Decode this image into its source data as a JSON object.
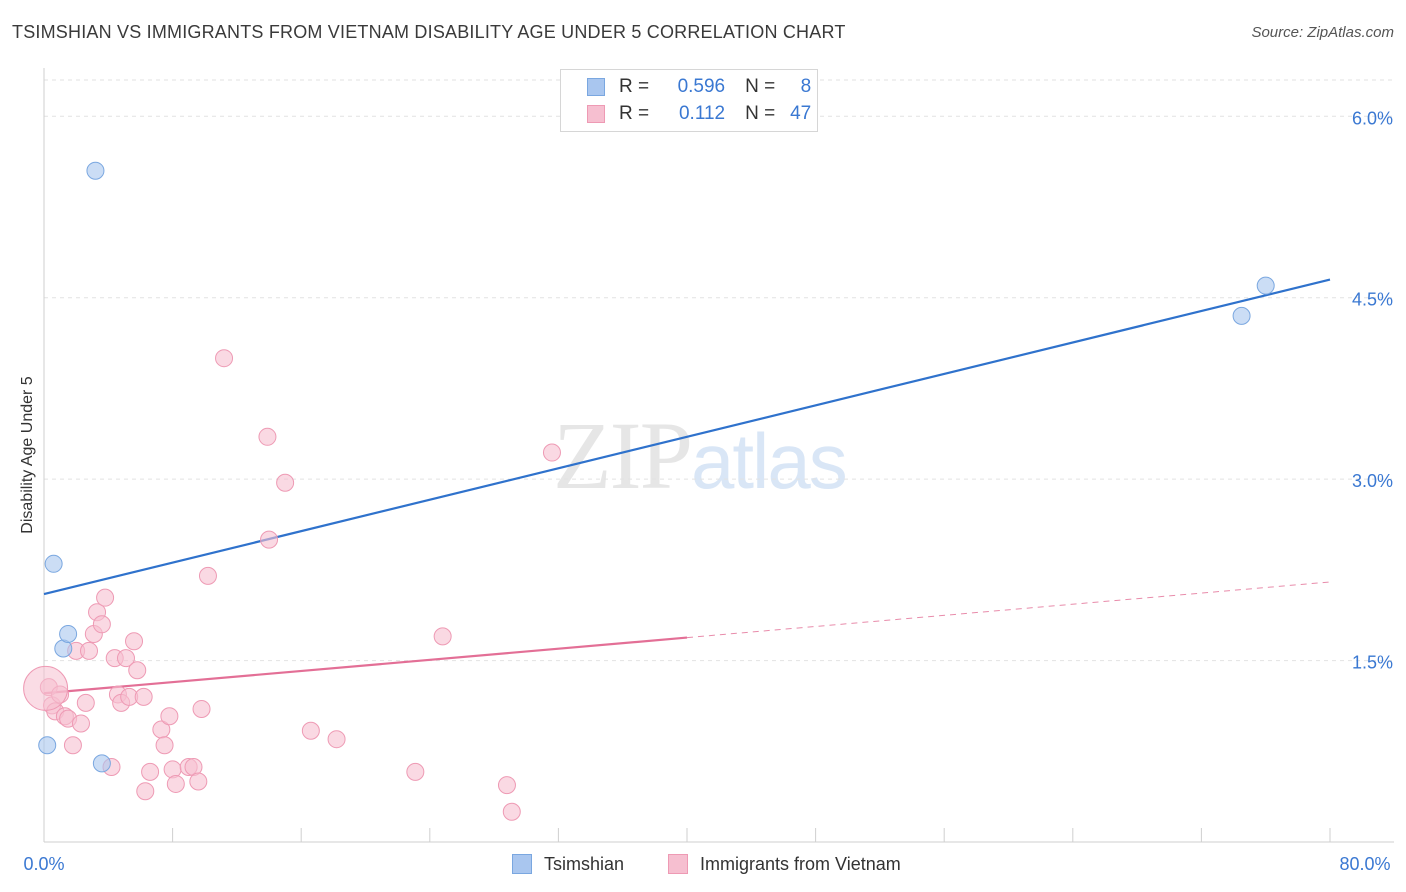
{
  "header": {
    "title": "TSIMSHIAN VS IMMIGRANTS FROM VIETNAM DISABILITY AGE UNDER 5 CORRELATION CHART",
    "source": "Source: ZipAtlas.com"
  },
  "watermark": {
    "zip": "ZIP",
    "atlas": "atlas"
  },
  "stats_legend": {
    "rows": [
      {
        "r_label": "R =",
        "r_value": "0.596",
        "n_label": "N =",
        "n_value": "8",
        "color": "#a9c6ef",
        "border": "#7aa7e0"
      },
      {
        "r_label": "R =",
        "r_value": "0.112",
        "n_label": "N =",
        "n_value": "47",
        "color": "#f6bfd0",
        "border": "#ee9ab4"
      }
    ]
  },
  "bottom_legend": {
    "items": [
      {
        "label": "Tsimshian",
        "color": "#a9c6ef",
        "border": "#7aa7e0"
      },
      {
        "label": "Immigrants from Vietnam",
        "color": "#f6bfd0",
        "border": "#ee9ab4"
      }
    ]
  },
  "chart_data": {
    "type": "scatter",
    "title": "TSIMSHIAN VS IMMIGRANTS FROM VIETNAM DISABILITY AGE UNDER 5 CORRELATION CHART",
    "xlabel": "",
    "ylabel": "Disability Age Under 5",
    "xlim": [
      0,
      80
    ],
    "ylim": [
      0,
      6.3
    ],
    "x_tick_labels": [
      "0.0%",
      "80.0%"
    ],
    "y_ticks": [
      1.5,
      3.0,
      4.5,
      6.0
    ],
    "y_tick_labels": [
      "1.5%",
      "3.0%",
      "4.5%",
      "6.0%"
    ],
    "grid": true,
    "series": [
      {
        "name": "Tsimshian",
        "color": "#a9c6ef",
        "stroke": "#7aa7e0",
        "line_color": "#2f72cc",
        "points": [
          {
            "x": 0.2,
            "y": 0.8
          },
          {
            "x": 0.6,
            "y": 2.3
          },
          {
            "x": 1.2,
            "y": 1.6
          },
          {
            "x": 1.5,
            "y": 1.72
          },
          {
            "x": 3.6,
            "y": 0.65
          },
          {
            "x": 3.2,
            "y": 5.55
          },
          {
            "x": 74.5,
            "y": 4.35
          },
          {
            "x": 76.0,
            "y": 4.6
          }
        ],
        "trend": {
          "x0": 0,
          "y0": 2.05,
          "x1": 80,
          "y1": 4.65,
          "dashed_from": null
        }
      },
      {
        "name": "Immigrants from Vietnam",
        "color": "#f6bfd0",
        "stroke": "#ee9ab4",
        "line_color": "#e36f96",
        "points": [
          {
            "x": 0.3,
            "y": 1.28
          },
          {
            "x": 0.5,
            "y": 1.13
          },
          {
            "x": 0.7,
            "y": 1.08
          },
          {
            "x": 1.0,
            "y": 1.22
          },
          {
            "x": 1.3,
            "y": 1.04
          },
          {
            "x": 1.5,
            "y": 1.02
          },
          {
            "x": 1.8,
            "y": 0.8
          },
          {
            "x": 2.0,
            "y": 1.58
          },
          {
            "x": 2.3,
            "y": 0.98
          },
          {
            "x": 2.6,
            "y": 1.15
          },
          {
            "x": 2.8,
            "y": 1.58
          },
          {
            "x": 3.1,
            "y": 1.72
          },
          {
            "x": 3.3,
            "y": 1.9
          },
          {
            "x": 3.6,
            "y": 1.8
          },
          {
            "x": 3.8,
            "y": 2.02
          },
          {
            "x": 4.2,
            "y": 0.62
          },
          {
            "x": 4.4,
            "y": 1.52
          },
          {
            "x": 4.6,
            "y": 1.22
          },
          {
            "x": 4.8,
            "y": 1.15
          },
          {
            "x": 5.1,
            "y": 1.52
          },
          {
            "x": 5.3,
            "y": 1.2
          },
          {
            "x": 5.6,
            "y": 1.66
          },
          {
            "x": 5.8,
            "y": 1.42
          },
          {
            "x": 6.2,
            "y": 1.2
          },
          {
            "x": 6.3,
            "y": 0.42
          },
          {
            "x": 6.6,
            "y": 0.58
          },
          {
            "x": 7.3,
            "y": 0.93
          },
          {
            "x": 7.5,
            "y": 0.8
          },
          {
            "x": 7.8,
            "y": 1.04
          },
          {
            "x": 8.0,
            "y": 0.6
          },
          {
            "x": 8.2,
            "y": 0.48
          },
          {
            "x": 9.0,
            "y": 0.62
          },
          {
            "x": 9.3,
            "y": 0.62
          },
          {
            "x": 9.6,
            "y": 0.5
          },
          {
            "x": 9.8,
            "y": 1.1
          },
          {
            "x": 10.2,
            "y": 2.2
          },
          {
            "x": 11.2,
            "y": 4.0
          },
          {
            "x": 13.9,
            "y": 3.35
          },
          {
            "x": 14.0,
            "y": 2.5
          },
          {
            "x": 15.0,
            "y": 2.97
          },
          {
            "x": 16.6,
            "y": 0.92
          },
          {
            "x": 18.2,
            "y": 0.85
          },
          {
            "x": 23.1,
            "y": 0.58
          },
          {
            "x": 24.8,
            "y": 1.7
          },
          {
            "x": 28.8,
            "y": 0.47
          },
          {
            "x": 29.1,
            "y": 0.25
          },
          {
            "x": 31.6,
            "y": 3.22
          }
        ],
        "trend": {
          "x0": 0,
          "y0": 1.23,
          "x1": 80,
          "y1": 2.15,
          "dashed_from": 40
        }
      }
    ]
  }
}
